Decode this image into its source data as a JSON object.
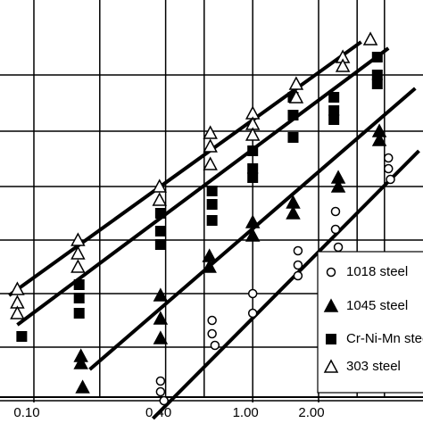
{
  "chart_data": {
    "type": "scatter",
    "log_x": true,
    "xlim": [
      0.07,
      6.0
    ],
    "ylim": [
      0,
      474
    ],
    "xticks": [
      {
        "value": 0.1,
        "label": "0.10"
      },
      {
        "value": 0.4,
        "label": "0.40"
      },
      {
        "value": 1,
        "label": "1.00"
      },
      {
        "value": 2,
        "label": "2.00"
      }
    ],
    "xgrid": [
      0.1,
      0.2,
      0.4,
      0.6,
      1,
      2,
      3,
      4
    ],
    "ygrid": [
      390,
      327,
      265,
      205,
      145,
      85,
      25
    ],
    "grid": true,
    "series": [
      {
        "name": "1018 steel",
        "marker": "circle-open",
        "color": "#000000",
        "x": [
          0.379,
          0.379,
          0.393,
          0.652,
          0.652,
          0.672,
          1.0,
          1.0,
          1.61,
          1.61,
          1.61,
          2.39,
          2.39,
          2.46,
          4.17,
          4.17,
          4.26
        ],
        "y": [
          47,
          35,
          25,
          115,
          100,
          87,
          145,
          123,
          193,
          177,
          165,
          237,
          217,
          197,
          297,
          285,
          273
        ]
      },
      {
        "name": "1045 steel",
        "marker": "triangle-filled",
        "color": "#000000",
        "x": [
          0.164,
          0.164,
          0.167,
          0.379,
          0.379,
          0.379,
          0.634,
          0.634,
          1.0,
          1.0,
          1.53,
          1.53,
          2.46,
          2.46,
          3.79,
          3.79
        ],
        "y": [
          75,
          67,
          40,
          143,
          117,
          95,
          187,
          175,
          225,
          210,
          247,
          235,
          275,
          265,
          327,
          317
        ]
      },
      {
        "name": "Cr-Ni-Mn steel",
        "marker": "square-filled",
        "color": "#000000",
        "x": [
          0.088,
          0.161,
          0.161,
          0.161,
          0.379,
          0.379,
          0.379,
          0.652,
          0.652,
          0.652,
          1.0,
          1.0,
          1.0,
          1.53,
          1.53,
          1.53,
          2.35,
          2.35,
          2.35,
          3.71,
          3.71,
          3.71
        ],
        "y": [
          97,
          155,
          140,
          123,
          235,
          215,
          200,
          260,
          245,
          227,
          305,
          285,
          275,
          365,
          345,
          320,
          365,
          350,
          340,
          410,
          390,
          380
        ]
      },
      {
        "name": "303 steel",
        "marker": "triangle-open",
        "color": "#000000",
        "x": [
          0.084,
          0.084,
          0.084,
          0.159,
          0.159,
          0.159,
          0.375,
          0.375,
          0.64,
          0.64,
          0.64,
          1.0,
          1.0,
          1.0,
          1.58,
          1.58,
          2.58,
          2.58,
          3.45
        ],
        "y": [
          150,
          135,
          123,
          205,
          190,
          175,
          265,
          250,
          325,
          310,
          290,
          347,
          335,
          323,
          380,
          365,
          410,
          400,
          430
        ]
      }
    ],
    "fits": [
      {
        "x": [
          0.084,
          4.17
        ],
        "y": [
          110,
          420
        ]
      },
      {
        "x": [
          0.077,
          3.13
        ],
        "y": [
          143,
          427
        ]
      },
      {
        "x": [
          0.18,
          5.53
        ],
        "y": [
          60,
          375
        ]
      },
      {
        "x": [
          0.35,
          5.75
        ],
        "y": [
          5,
          305
        ]
      }
    ]
  }
}
